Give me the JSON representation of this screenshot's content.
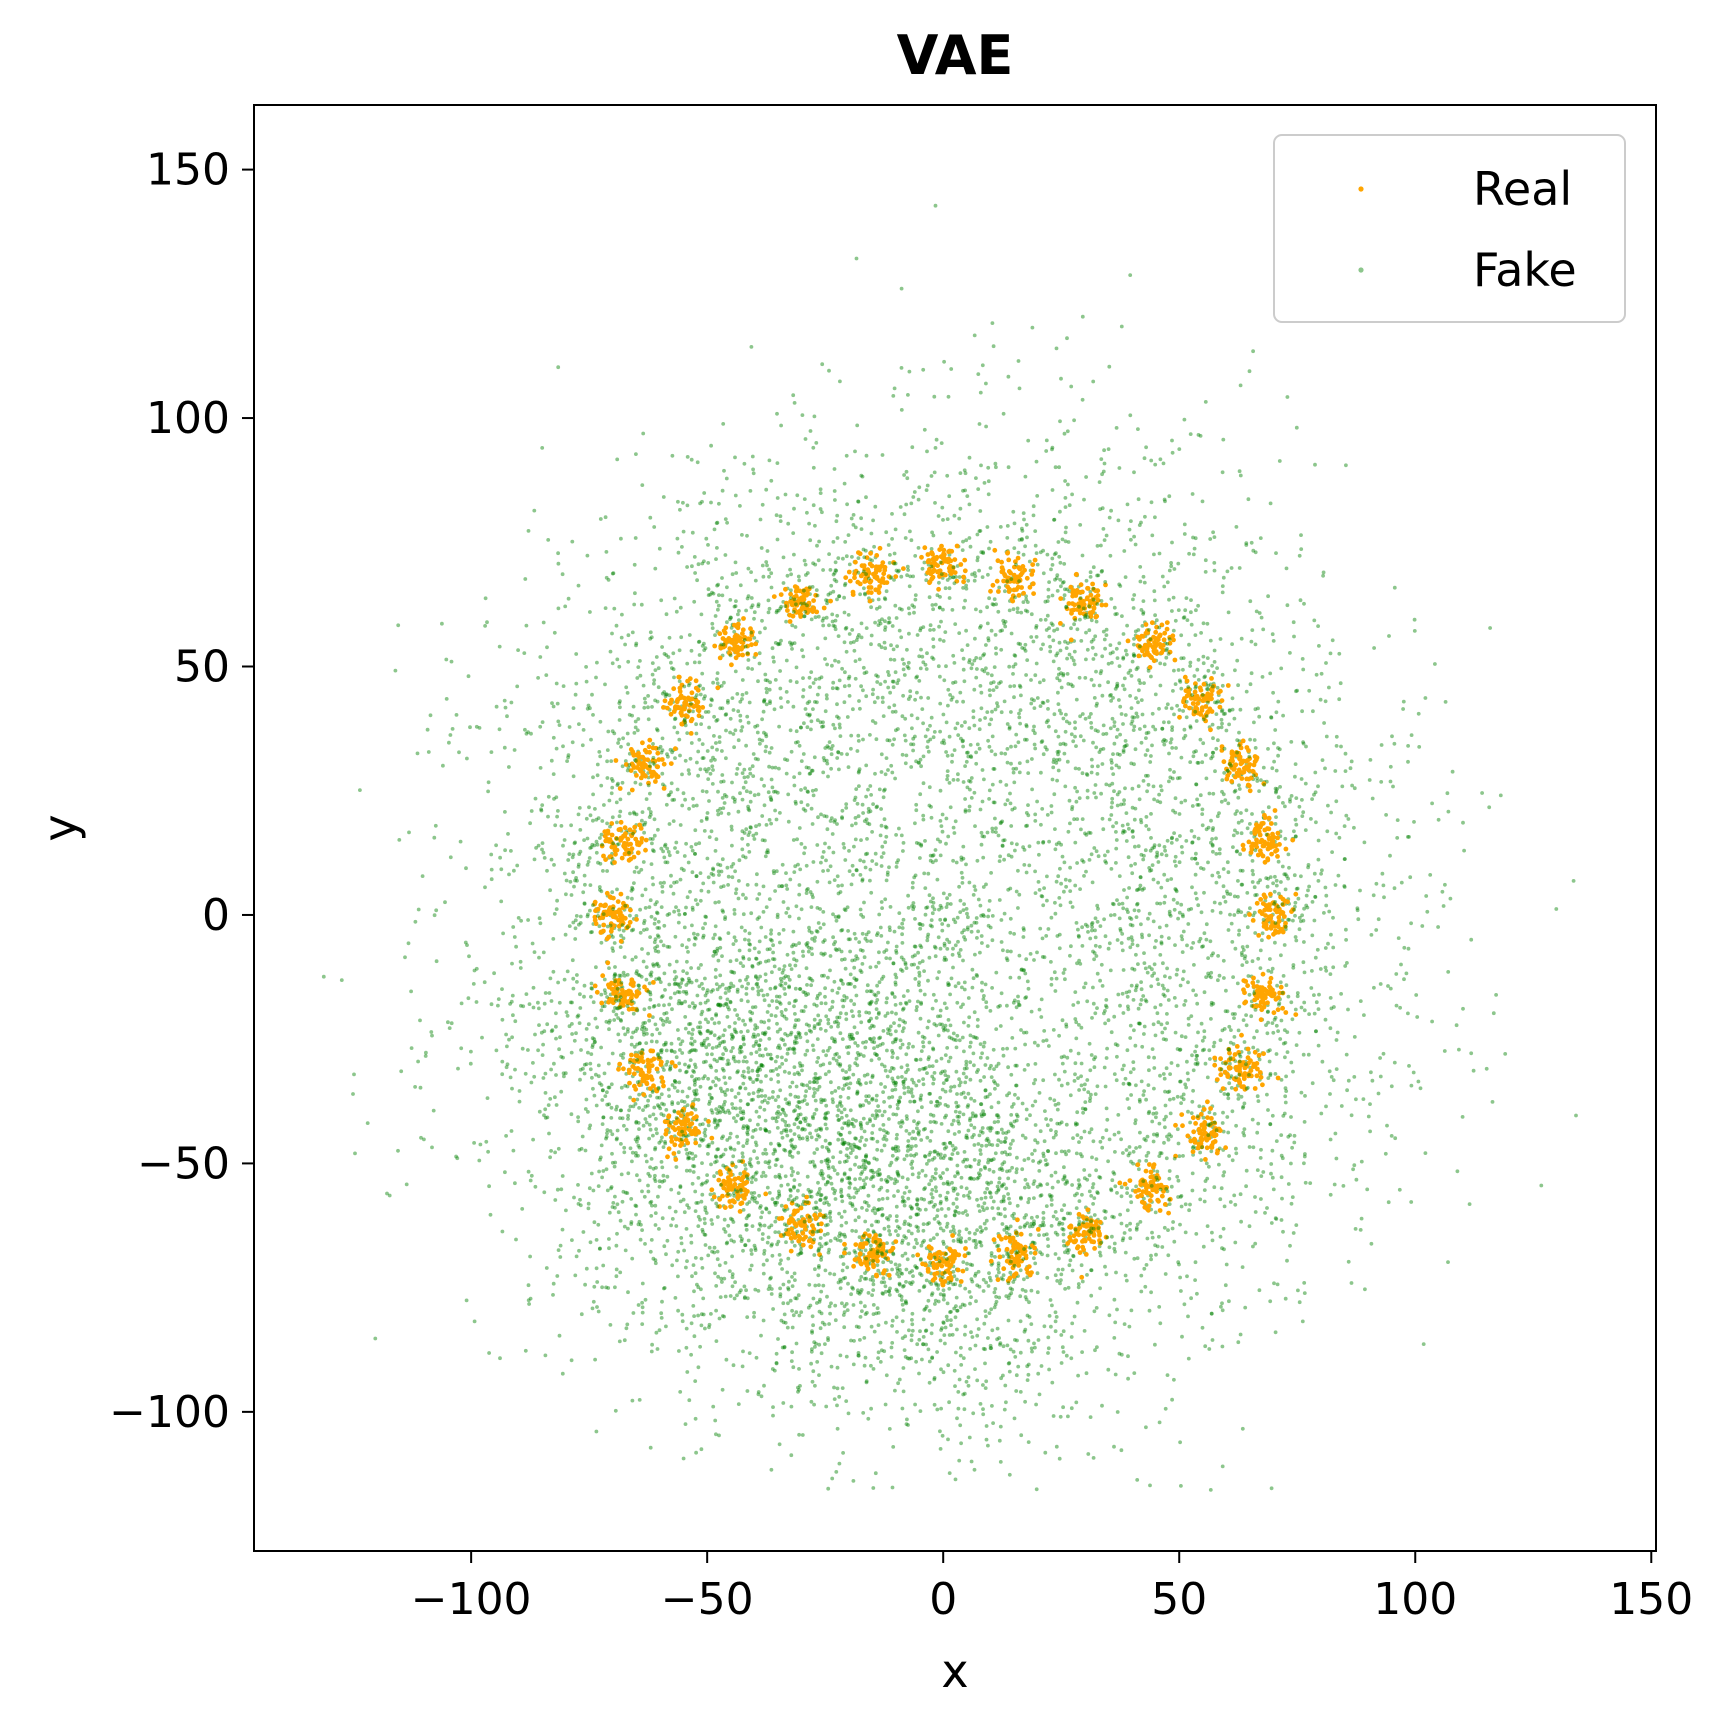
{
  "chart_data": {
    "type": "scatter",
    "title": "VAE",
    "xlabel": "x",
    "ylabel": "y",
    "xlim": [
      -146,
      151
    ],
    "ylim": [
      -128,
      163
    ],
    "xticks": [
      -100,
      -50,
      0,
      50,
      100,
      150
    ],
    "yticks": [
      -100,
      -50,
      0,
      50,
      100,
      150
    ],
    "xtick_labels": [
      "−100",
      "−50",
      "0",
      "50",
      "100",
      "150"
    ],
    "ytick_labels": [
      "−100",
      "−50",
      "0",
      "50",
      "100",
      "150"
    ],
    "grid": false,
    "legend": {
      "location": "upper right",
      "entries": [
        {
          "label": "Real",
          "color": "#FFA500"
        },
        {
          "label": "Fake",
          "color": "#008000"
        }
      ]
    },
    "series": [
      {
        "name": "Real",
        "color": "#FFA500",
        "alpha": 1.0,
        "cluster_centers": [
          [
            0,
            70
          ],
          [
            15,
            68
          ],
          [
            30,
            63
          ],
          [
            44,
            55
          ],
          [
            55,
            43
          ],
          [
            63,
            30
          ],
          [
            68,
            15
          ],
          [
            70,
            0
          ],
          [
            68,
            -16
          ],
          [
            63,
            -31
          ],
          [
            55,
            -44
          ],
          [
            44,
            -55
          ],
          [
            30,
            -64
          ],
          [
            15,
            -68
          ],
          [
            0,
            -70
          ],
          [
            -15,
            -68
          ],
          [
            -30,
            -63
          ],
          [
            -44,
            -55
          ],
          [
            -55,
            -43
          ],
          [
            -63,
            -31
          ],
          [
            -68,
            -16
          ],
          [
            -70,
            0
          ],
          [
            -68,
            15
          ],
          [
            -63,
            30
          ],
          [
            -55,
            43
          ],
          [
            -44,
            55
          ],
          [
            -30,
            63
          ],
          [
            -15,
            68
          ]
        ],
        "cluster_count": 28,
        "cluster_radius": 70,
        "cluster_spread": 2.2
      },
      {
        "name": "Fake",
        "color": "#008000",
        "alpha": 0.45,
        "distribution": "ring",
        "ring_center": [
          0,
          0
        ],
        "ring_radius_mean": 62,
        "ring_radius_sd": 24,
        "denser_region": "lower-left",
        "x_range": [
          -133,
          137
        ],
        "y_range": [
          -116,
          150
        ]
      }
    ]
  }
}
